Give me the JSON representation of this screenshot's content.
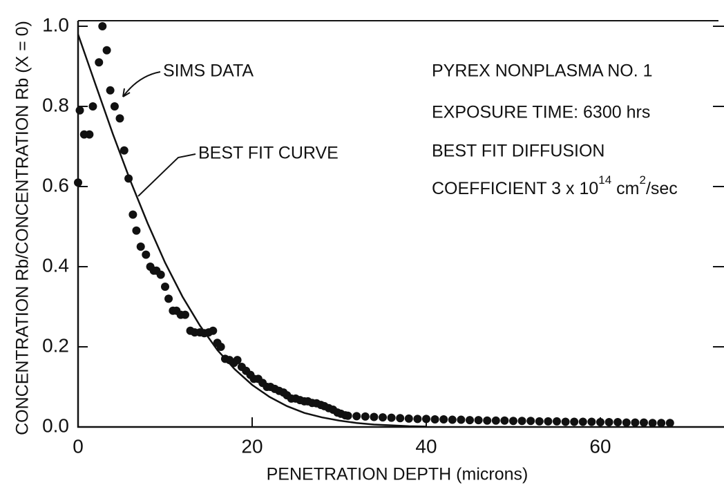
{
  "chart_data": {
    "type": "scatter",
    "xlabel": "PENETRATION DEPTH (microns)",
    "ylabel": "CONCENTRATION Rb/CONCENTRATION Rb (X = 0)",
    "xlim": [
      0,
      74
    ],
    "ylim": [
      0,
      1
    ],
    "xticks": [
      0,
      20,
      40,
      60
    ],
    "yticks": [
      {
        "value": 0,
        "label": "0.0"
      },
      0.2,
      0.4,
      0.6,
      0.8,
      {
        "value": 1,
        "label": "1.0"
      }
    ],
    "series": [
      {
        "name": "SIMS DATA",
        "type": "scatter",
        "color": "#111111",
        "x": [
          0,
          0.2,
          0.7,
          1.3,
          1.7,
          2.4,
          2.8,
          3.3,
          3.7,
          4.2,
          4.8,
          5.3,
          5.8,
          6.3,
          6.7,
          7.2,
          7.8,
          8.3,
          8.7,
          9.0,
          9.5,
          10.0,
          10.4,
          10.9,
          11.3,
          11.8,
          12.3,
          12.9,
          13.4,
          14.0,
          14.5,
          15.0,
          15.5,
          16.0,
          16.4,
          16.9,
          17.4,
          17.9,
          18.3,
          18.8,
          19.3,
          19.8,
          20.2,
          20.7,
          21.2,
          21.7,
          22.1,
          22.6,
          23.1,
          23.6,
          24.0,
          24.5,
          25.0,
          25.5,
          26.0,
          26.4,
          26.9,
          27.4,
          27.9,
          28.3,
          28.8,
          29.3,
          29.8,
          30.2,
          30.7,
          31,
          32,
          33,
          34,
          35,
          36,
          37,
          38,
          39,
          40,
          41,
          42,
          43,
          44,
          45,
          46,
          47,
          48,
          49,
          50,
          51,
          52,
          53,
          54,
          55,
          56,
          57,
          58,
          59,
          60,
          61,
          62,
          63,
          64,
          65,
          66,
          67,
          68
        ],
        "values": [
          0.61,
          0.79,
          0.73,
          0.73,
          0.8,
          0.91,
          1.0,
          0.94,
          0.84,
          0.8,
          0.77,
          0.69,
          0.62,
          0.53,
          0.49,
          0.45,
          0.43,
          0.4,
          0.39,
          0.39,
          0.38,
          0.35,
          0.32,
          0.29,
          0.29,
          0.28,
          0.28,
          0.24,
          0.236,
          0.236,
          0.234,
          0.236,
          0.24,
          0.21,
          0.2,
          0.17,
          0.167,
          0.16,
          0.167,
          0.15,
          0.14,
          0.13,
          0.12,
          0.12,
          0.11,
          0.1,
          0.1,
          0.095,
          0.09,
          0.086,
          0.079,
          0.071,
          0.071,
          0.067,
          0.064,
          0.064,
          0.06,
          0.059,
          0.055,
          0.052,
          0.047,
          0.043,
          0.036,
          0.033,
          0.029,
          0.028,
          0.027,
          0.026,
          0.025,
          0.024,
          0.023,
          0.022,
          0.021,
          0.02,
          0.02,
          0.019,
          0.019,
          0.018,
          0.018,
          0.017,
          0.017,
          0.016,
          0.016,
          0.016,
          0.015,
          0.015,
          0.015,
          0.014,
          0.014,
          0.014,
          0.013,
          0.013,
          0.013,
          0.013,
          0.012,
          0.012,
          0.012,
          0.011,
          0.011,
          0.011,
          0.01,
          0.01,
          0.01
        ]
      },
      {
        "name": "BEST FIT CURVE",
        "type": "line",
        "color": "#111111",
        "x": [
          0,
          2,
          4,
          6,
          8,
          10,
          12,
          14,
          16,
          18,
          20,
          22,
          24,
          26,
          28,
          30,
          32,
          34,
          36,
          38,
          40
        ],
        "values": [
          0.98,
          0.855,
          0.731,
          0.615,
          0.508,
          0.41,
          0.325,
          0.253,
          0.192,
          0.144,
          0.105,
          0.075,
          0.052,
          0.035,
          0.024,
          0.016,
          0.01,
          0.006,
          0.004,
          0.002,
          0.001
        ]
      }
    ],
    "annotations": [
      "PYREX NONPLASMA NO. 1",
      "EXPOSURE TIME: 6300 hrs",
      "BEST FIT DIFFUSION"
    ],
    "coefficient_text": [
      "COEFFICIENT 3 x 10",
      "14",
      " cm",
      "2",
      "/sec"
    ]
  }
}
